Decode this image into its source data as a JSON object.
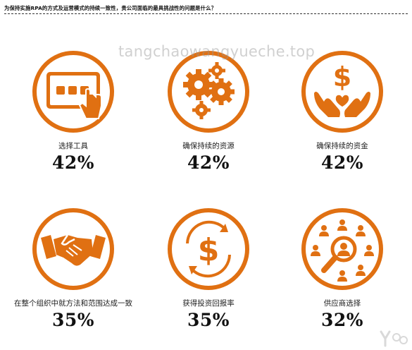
{
  "header": {
    "title": "为保持实施RPA的方式及运营模式的持续一致性，贵公司面临的最具挑战性的问题是什么？"
  },
  "watermark": "tangchaowangyueche.top",
  "accent": "#E07012",
  "chart_data": {
    "type": "infographic",
    "title": "为保持实施RPA的方式及运营模式的持续一致性，贵公司面临的最具挑战性的问题是什么？",
    "unit": "%",
    "categories": [
      "选择工具",
      "确保持续的资源",
      "确保持续的资金",
      "在整个组织中就方法和范围达成一致",
      "获得投资回报率",
      "供应商选择"
    ],
    "values": [
      42,
      42,
      42,
      35,
      35,
      32
    ],
    "items": [
      {
        "label": "选择工具",
        "value": "42%",
        "icon": "tablet-touch-icon"
      },
      {
        "label": "确保持续的资源",
        "value": "42%",
        "icon": "gears-icon"
      },
      {
        "label": "确保持续的资金",
        "value": "42%",
        "icon": "hands-dollar-icon"
      },
      {
        "label": "在整个组织中就方法和范围达成一致",
        "value": "35%",
        "icon": "handshake-icon"
      },
      {
        "label": "获得投资回报率",
        "value": "35%",
        "icon": "dollar-cycle-icon"
      },
      {
        "label": "供应商选择",
        "value": "32%",
        "icon": "people-search-icon"
      }
    ]
  }
}
